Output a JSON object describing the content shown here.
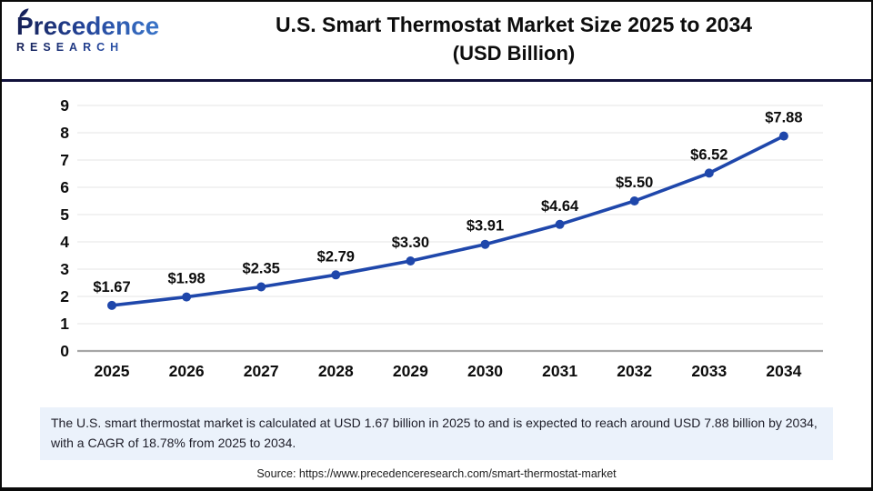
{
  "header": {
    "logo_brand": "Precedence",
    "logo_sub": "RESEARCH",
    "title_line1": "U.S. Smart Thermostat Market Size 2025 to 2034",
    "title_line2": "(USD Billion)"
  },
  "chart_data": {
    "type": "line",
    "title": "U.S. Smart Thermostat Market Size 2025 to 2034 (USD Billion)",
    "categories": [
      "2025",
      "2026",
      "2027",
      "2028",
      "2029",
      "2030",
      "2031",
      "2032",
      "2033",
      "2034"
    ],
    "values": [
      1.67,
      1.98,
      2.35,
      2.79,
      3.3,
      3.91,
      4.64,
      5.5,
      6.52,
      7.88
    ],
    "point_labels": [
      "$1.67",
      "$1.98",
      "$2.35",
      "$2.79",
      "$3.30",
      "$3.91",
      "$4.64",
      "$5.50",
      "$6.52",
      "$7.88"
    ],
    "xlabel": "",
    "ylabel": "",
    "ylim": [
      0,
      9
    ],
    "ytick_step": 1,
    "grid": true,
    "legend_position": "none",
    "line_color": "#1F47AB",
    "gridline_color": "#E9E9E9",
    "zeroline_color": "#A6A6A6"
  },
  "footnote": {
    "text": "The U.S. smart thermostat market is calculated at USD 1.67 billion in 2025 to and is expected to reach around USD 7.88 billion by 2034, with a CAGR of 18.78% from 2025 to 2034."
  },
  "source": {
    "text": "Source: https://www.precedenceresearch.com/smart-thermostat-market"
  }
}
